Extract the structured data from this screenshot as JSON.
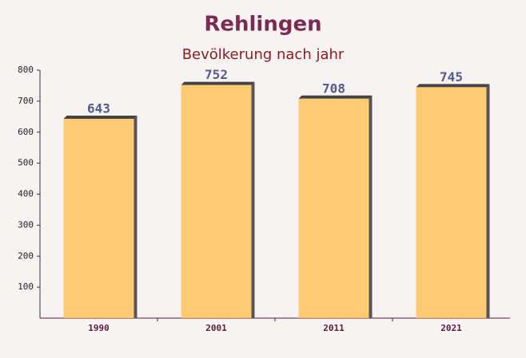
{
  "chart_data": {
    "type": "bar",
    "title": "Rehlingen",
    "subtitle": "Bevölkerung nach jahr",
    "categories": [
      "1990",
      "2001",
      "2011",
      "2021"
    ],
    "values": [
      643,
      752,
      708,
      745
    ],
    "color": "#ffc35a",
    "ylim": [
      0,
      800
    ],
    "yticks": [
      100,
      200,
      300,
      400,
      500,
      600,
      700,
      800
    ],
    "grid": false
  }
}
